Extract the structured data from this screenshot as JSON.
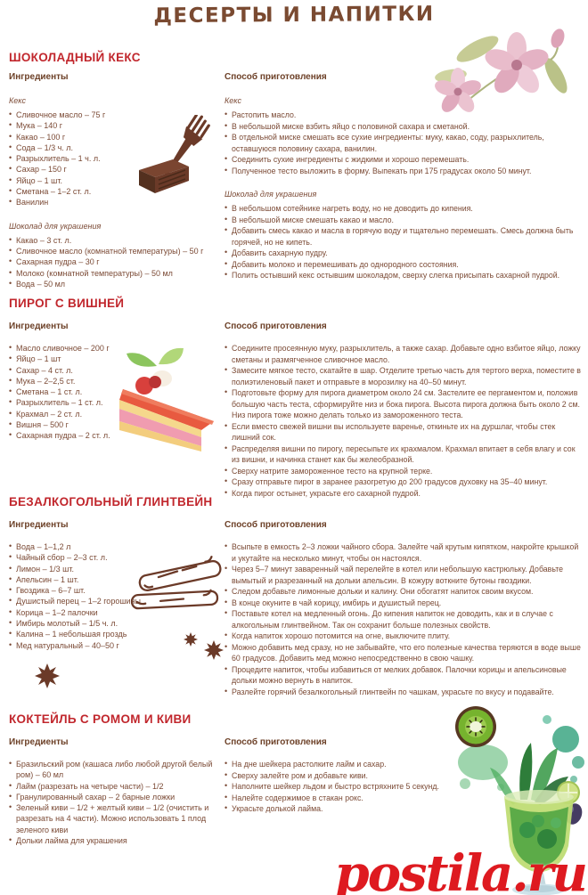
{
  "page": {
    "title": "ДЕСЕРТЫ И НАПИТКИ",
    "watermark": "postila.ru",
    "colors": {
      "heading_red": "#c1272d",
      "text_brown": "#7b4a35",
      "title_brown": "#7a4a31",
      "watermark_red": "#de1a20"
    },
    "illustrations": [
      "pink-flowers",
      "fork-and-brownie",
      "cherry-cake-slice",
      "cinnamon-sticks",
      "star-anise",
      "kiwi-slice",
      "green-cocktail-glass"
    ]
  },
  "labels": {
    "ingredients": "Ингредиенты",
    "method": "Способ приготовления"
  },
  "recipes": [
    {
      "title": "ШОКОЛАДНЫЙ КЕКС",
      "ingredient_groups": [
        {
          "name": "Кекс",
          "items": [
            "Сливочное масло – 75 г",
            "Мука – 140 г",
            "Какао – 100 г",
            "Сода – 1/3 ч. л.",
            "Разрыхлитель – 1 ч. л.",
            "Сахар – 150 г",
            "Яйцо – 1 шт.",
            "Сметана – 1–2 ст. л.",
            "Ванилин"
          ]
        },
        {
          "name": "Шоколад для украшения",
          "items": [
            "Какао – 3 ст. л.",
            "Сливочное масло (комнатной температуры) – 50 г",
            "Сахарная пудра – 30 г",
            "Молоко (комнатной температуры) – 50 мл",
            "Вода – 50 мл"
          ]
        }
      ],
      "method_groups": [
        {
          "name": "Кекс",
          "steps": [
            "Растопить масло.",
            "В небольшой миске взбить яйцо с половиной сахара и сметаной.",
            "В отдельной миске смешать все сухие ингредиенты: муку, какао, соду, разрыхлитель, оставшуюся половину сахара, ванилин.",
            "Соединить сухие ингредиенты с жидкими и хорошо перемешать.",
            "Полученное тесто выложить в форму. Выпекать при 175 градусах около 50 минут."
          ]
        },
        {
          "name": "Шоколад для украшения",
          "steps": [
            "В небольшом сотейнике нагреть воду, но не доводить до кипения.",
            "В небольшой миске смешать какао и масло.",
            "Добавить смесь какао и масла в горячую воду и тщательно перемешать. Смесь должна быть горячей, но не кипеть.",
            "Добавить сахарную пудру.",
            "Добавить молоко и перемешивать до однородного состояния.",
            "Полить остывший кекс остывшим шоколадом, сверху слегка присыпать сахарной пудрой."
          ]
        }
      ]
    },
    {
      "title": "ПИРОГ С ВИШНЕЙ",
      "ingredients": [
        "Масло сливочное – 200 г",
        "Яйцо – 1 шт",
        "Сахар – 4 ст. л.",
        "Мука – 2–2,5 ст.",
        "Сметана – 1 ст. л.",
        "Разрыхлитель – 1 ст. л.",
        "Крахмал – 2 ст. л.",
        "Вишня – 500 г",
        "Сахарная пудра – 2 ст. л."
      ],
      "steps": [
        "Соедините просеянную муку, разрыхлитель, а также сахар. Добавьте одно взбитое яйцо, ложку сметаны и размягченное сливочное масло.",
        "Замесите мягкое тесто, скатайте в шар. Отделите третью часть для тертого верха, поместите в полиэтиленовый пакет и отправьте в морозилку на 40–50 минут.",
        "Подготовьте форму для пирога диаметром около 24 см. Застелите ее пергаментом и, положив большую часть теста, сформируйте низ и бока пирога. Высота пирога должна быть около 2 см. Низ пирога тоже можно делать только из замороженного теста.",
        "Если вместо свежей вишни вы используете варенье, откиньте их на дуршлаг, чтобы стек лишний сок.",
        "Распределяя вишни по пирогу, пересыпьте их крахмалом. Крахмал впитает в себя влагу и сок из вишни, и начинка станет как бы желеобразной.",
        "Сверху натрите замороженное тесто на крупной терке.",
        "Сразу отправьте пирог в заранее разогретую до 200 градусов духовку на 35–40 минут.",
        "Когда пирог остынет, украсьте его сахарной пудрой."
      ]
    },
    {
      "title": "БЕЗАЛКОГОЛЬНЫЙ ГЛИНТВЕЙН",
      "ingredients": [
        "Вода – 1–1,2 л",
        "Чайный сбор – 2–3 ст. л.",
        "Лимон – 1/3 шт.",
        "Апельсин – 1 шт.",
        "Гвоздика – 6–7 шт.",
        "Душистый перец – 1–2 горошины",
        "Корица – 1–2 палочки",
        "Имбирь молотый – 1/5 ч. л.",
        "Калина – 1 небольшая гроздь",
        "Мед натуральный – 40–50 г"
      ],
      "steps": [
        "Всыпьте в емкость 2–3 ложки чайного сбора. Залейте чай крутым кипятком, накройте крышкой и укутайте на несколько минут, чтобы он настоялся.",
        "Через 5–7 минут заваренный чай перелейте в котел или небольшую кастрюльку. Добавьте вымытый и разрезанный на дольки апельсин. В кожуру воткните бутоны гвоздики.",
        "Следом добавьте лимонные дольки и калину. Они обогатят напиток своим вкусом.",
        "В конце окуните в чай корицу, имбирь и душистый перец.",
        "Поставьте котел на медленный огонь. До кипения напиток не доводить, как и в случае с алкогольным глинтвейном. Так он сохранит больше полезных свойств.",
        "Когда напиток хорошо потомится на огне, выключите плиту.",
        "Можно добавить мед сразу, но не забывайте, что его полезные качества теряются в воде выше 60 градусов. Добавить мед можно непосредственно в свою чашку.",
        "Процедите напиток, чтобы избавиться от мелких добавок. Палочки корицы и апельсиновые дольки можно вернуть в напиток.",
        "Разлейте горячий безалкогольный глинтвейн по чашкам, украсьте по вкусу и подавайте."
      ]
    },
    {
      "title": "КОКТЕЙЛЬ С РОМОМ И КИВИ",
      "ingredients": [
        "Бразильский ром (кашаса либо любой другой белый ром) – 60 мл",
        "Лайм (разрезать на четыре части) – 1/2",
        "Гранулированный сахар – 2 барные ложки",
        "Зеленый киви – 1/2 + желтый киви – 1/2 (очистить и разрезать на 4 части). Можно использовать 1 плод зеленого киви",
        "Дольки лайма для украшения"
      ],
      "steps": [
        "На дне шейкера растолките лайм и сахар.",
        "Сверху залейте ром и добавьте киви.",
        "Наполните шейкер льдом и быстро встряхните 5 секунд.",
        "Налейте содержимое в стакан рокс.",
        "Украсьте долькой лайма."
      ]
    }
  ]
}
